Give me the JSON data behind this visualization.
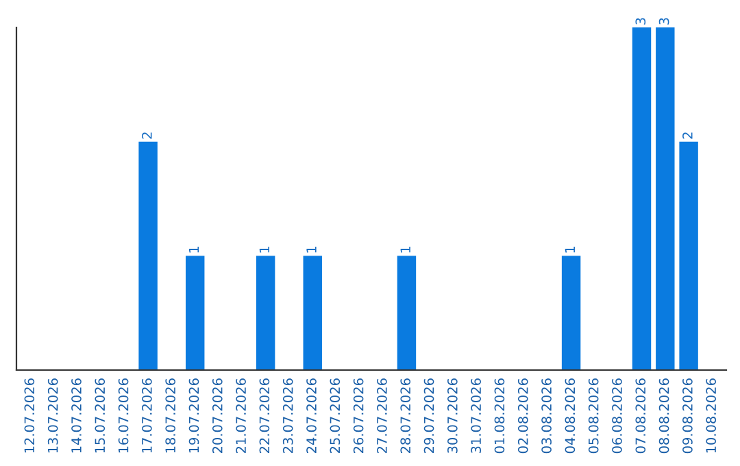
{
  "chart_data": {
    "type": "bar",
    "categories": [
      "12.07.2026",
      "13.07.2026",
      "14.07.2026",
      "15.07.2026",
      "16.07.2026",
      "17.07.2026",
      "18.07.2026",
      "19.07.2026",
      "20.07.2026",
      "21.07.2026",
      "22.07.2026",
      "23.07.2026",
      "24.07.2026",
      "25.07.2026",
      "26.07.2026",
      "27.07.2026",
      "28.07.2026",
      "29.07.2026",
      "30.07.2026",
      "31.07.2026",
      "01.08.2026",
      "02.08.2026",
      "03.08.2026",
      "04.08.2026",
      "05.08.2026",
      "06.08.2026",
      "07.08.2026",
      "08.08.2026",
      "09.08.2026",
      "10.08.2026"
    ],
    "values": [
      0,
      0,
      0,
      0,
      0,
      2,
      0,
      1,
      0,
      0,
      1,
      0,
      1,
      0,
      0,
      0,
      1,
      0,
      0,
      0,
      0,
      0,
      0,
      1,
      0,
      0,
      3,
      3,
      2,
      0
    ],
    "value_labels": [
      null,
      null,
      null,
      null,
      null,
      "2",
      null,
      "1",
      null,
      null,
      "1",
      null,
      "1",
      null,
      null,
      null,
      "1",
      null,
      null,
      null,
      null,
      null,
      null,
      "1",
      null,
      null,
      "3",
      "3",
      "2",
      null
    ],
    "color": "#0a7be0",
    "ylim": [
      0,
      3
    ],
    "tick_labels": "x",
    "grid": false,
    "legend": false
  }
}
